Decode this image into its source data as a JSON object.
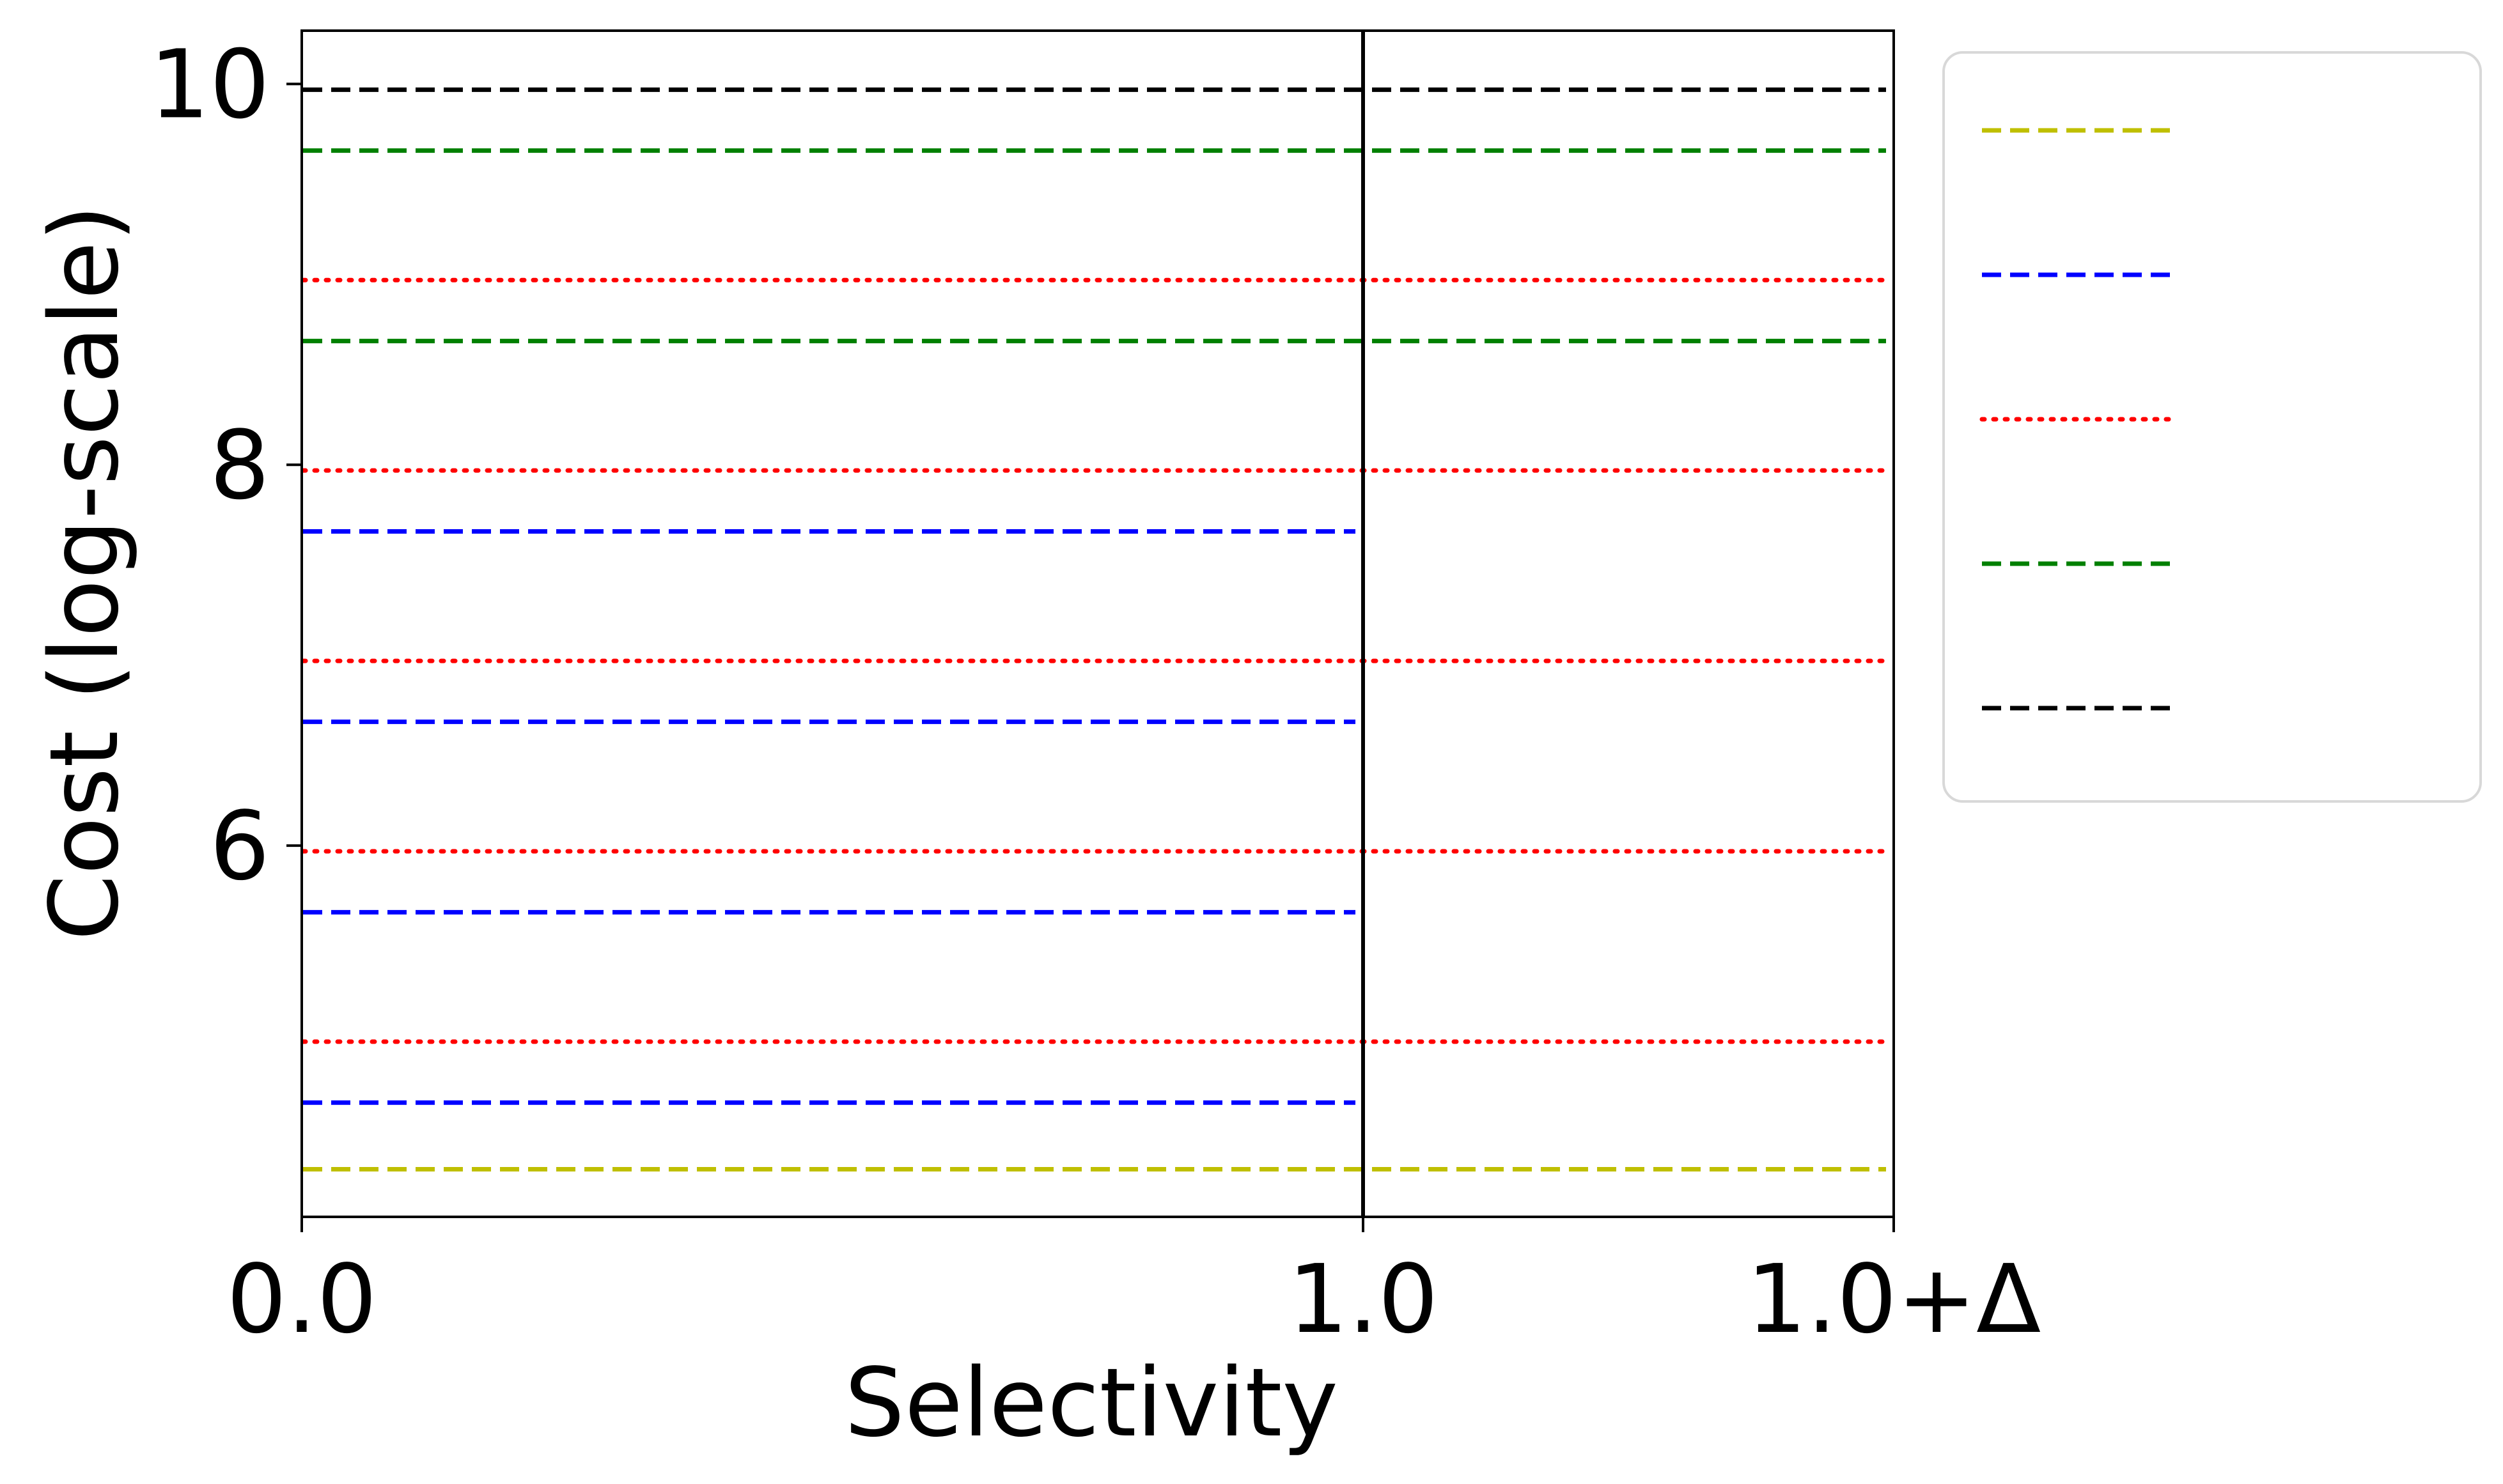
{
  "chart_data": {
    "type": "line",
    "xlabel": "Selectivity",
    "ylabel": "Cost (log-scale)",
    "x_ticks": [
      {
        "value": 0.0,
        "label": "0.0"
      },
      {
        "value": 1.0,
        "label": "1.0"
      },
      {
        "value": 1.5,
        "label": "1.0+Δ"
      }
    ],
    "y_ticks": [
      {
        "value": 6,
        "label": "6"
      },
      {
        "value": 8,
        "label": "8"
      },
      {
        "value": 10,
        "label": "10"
      }
    ],
    "xlim": [
      0,
      1.5
    ],
    "ylim": [
      4.05,
      10.28
    ],
    "vline": {
      "x": 1.0,
      "color": "#000000"
    },
    "grid": false,
    "legend_position": "right, outside plot (upper)",
    "legend_labels_visible": false,
    "series": [
      {
        "color": "#bfbf00",
        "dash": "dashed",
        "lines": [
          {
            "y": 4.3,
            "x": [
              0,
              1.5
            ]
          }
        ]
      },
      {
        "color": "#0000ff",
        "dash": "dashed",
        "lines": [
          {
            "y": 4.65,
            "x": [
              0,
              1.0
            ]
          },
          {
            "y": 5.65,
            "x": [
              0,
              1.0
            ]
          },
          {
            "y": 6.65,
            "x": [
              0,
              1.0
            ]
          },
          {
            "y": 7.65,
            "x": [
              0,
              1.0
            ]
          }
        ]
      },
      {
        "color": "#ff0000",
        "dash": "dotted",
        "lines": [
          {
            "y": 4.97,
            "x": [
              0,
              1.5
            ]
          },
          {
            "y": 5.97,
            "x": [
              0,
              1.5
            ]
          },
          {
            "y": 6.97,
            "x": [
              0,
              1.5
            ]
          },
          {
            "y": 7.97,
            "x": [
              0,
              1.5
            ]
          },
          {
            "y": 8.97,
            "x": [
              0,
              1.5
            ]
          }
        ]
      },
      {
        "color": "#008000",
        "dash": "dashed",
        "lines": [
          {
            "y": 8.65,
            "x": [
              0,
              1.5
            ]
          },
          {
            "y": 9.65,
            "x": [
              0,
              1.5
            ]
          }
        ]
      },
      {
        "color": "#000000",
        "dash": "dashed",
        "lines": [
          {
            "y": 9.97,
            "x": [
              0,
              1.5
            ]
          }
        ]
      }
    ]
  }
}
